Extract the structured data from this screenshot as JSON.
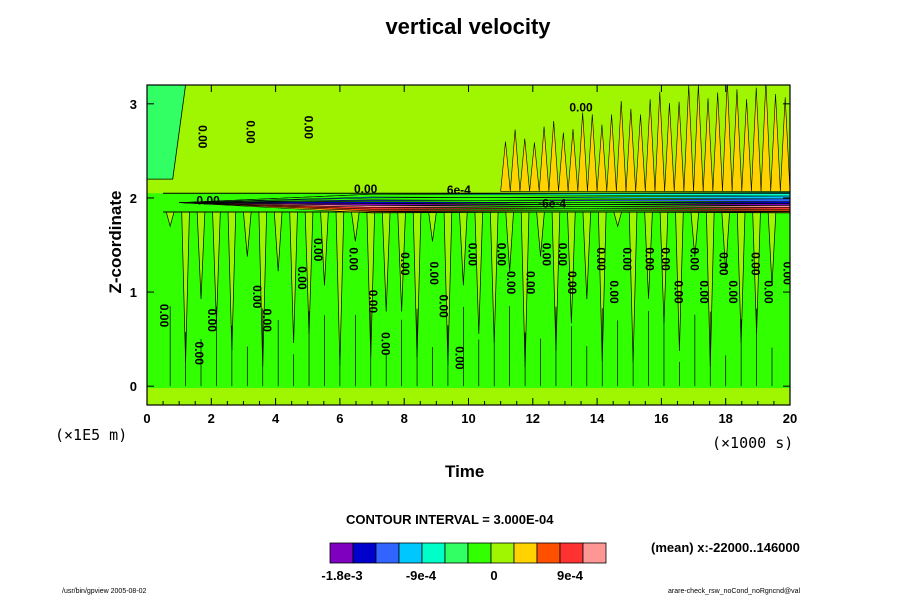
{
  "chart_data": {
    "type": "heatmap",
    "title": "vertical velocity",
    "xlabel": "Time",
    "ylabel": "Z-coordinate",
    "x_unit": "(×1000 s)",
    "y_unit": "(×1E5 m)",
    "x_ticks": [
      "0",
      "2",
      "4",
      "6",
      "8",
      "10",
      "12",
      "14",
      "16",
      "18",
      "20"
    ],
    "y_ticks": [
      "0",
      "1",
      "2",
      "3"
    ],
    "xlim": [
      0,
      20
    ],
    "ylim": [
      -0.2,
      3.2
    ],
    "contour_interval": "CONTOUR INTERVAL = 3.000E-04",
    "mean_label": "(mean) x:-22000..146000",
    "contour_labels": [
      "0.00",
      "6e-4",
      "-6e-4"
    ],
    "colorbar": {
      "colors": [
        "#7f00bf",
        "#0000cd",
        "#3264ff",
        "#00c8ff",
        "#00ffc8",
        "#32ff64",
        "#32ff00",
        "#a0f500",
        "#ffd200",
        "#ff5000",
        "#ff3232",
        "#ff9696"
      ],
      "tick_labels": [
        "-1.8e-3",
        "-9e-4",
        "0",
        "9e-4"
      ]
    },
    "grid": false
  },
  "footer": {
    "left": "/usr/bin/gpview 2005-08-02",
    "right": "arare-check_rsw_noCond_noRgncnd@val"
  }
}
